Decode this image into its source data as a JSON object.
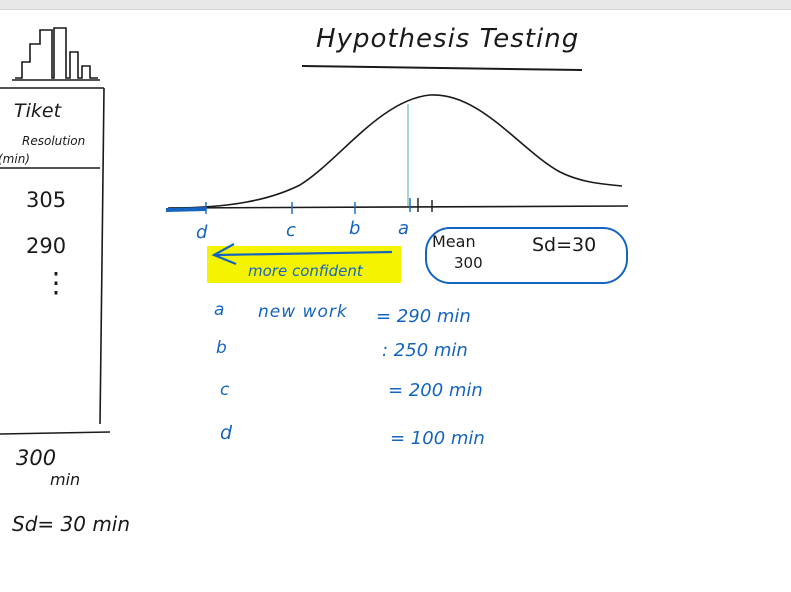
{
  "title": "Hypothesis Testing",
  "table": {
    "header_line1": "Tiket",
    "header_line2": "Resolution",
    "header_line3": "(min)",
    "values": [
      "305",
      "290",
      "⋮"
    ],
    "summary_mean": "300",
    "summary_unit": "min",
    "summary_sd": "Sd= 30 min"
  },
  "axis_labels": [
    "d",
    "c",
    "b",
    "a"
  ],
  "arrow_label": "more confident",
  "mean_box": {
    "mean_label": "Mean",
    "mean_value": "300",
    "sd": "Sd=30"
  },
  "cases": [
    {
      "letter": "a",
      "description": "new work",
      "equals": "= 290 min"
    },
    {
      "letter": "b",
      "description": "",
      "equals": ": 250 min"
    },
    {
      "letter": "c",
      "description": "",
      "equals": "= 200 min"
    },
    {
      "letter": "d",
      "description": "",
      "equals": "= 100 min"
    }
  ],
  "colors": {
    "ink": "#1a1a1a",
    "blue": "#1565c0",
    "highlight": "#f4f400",
    "teal": "#7fc8b8"
  }
}
